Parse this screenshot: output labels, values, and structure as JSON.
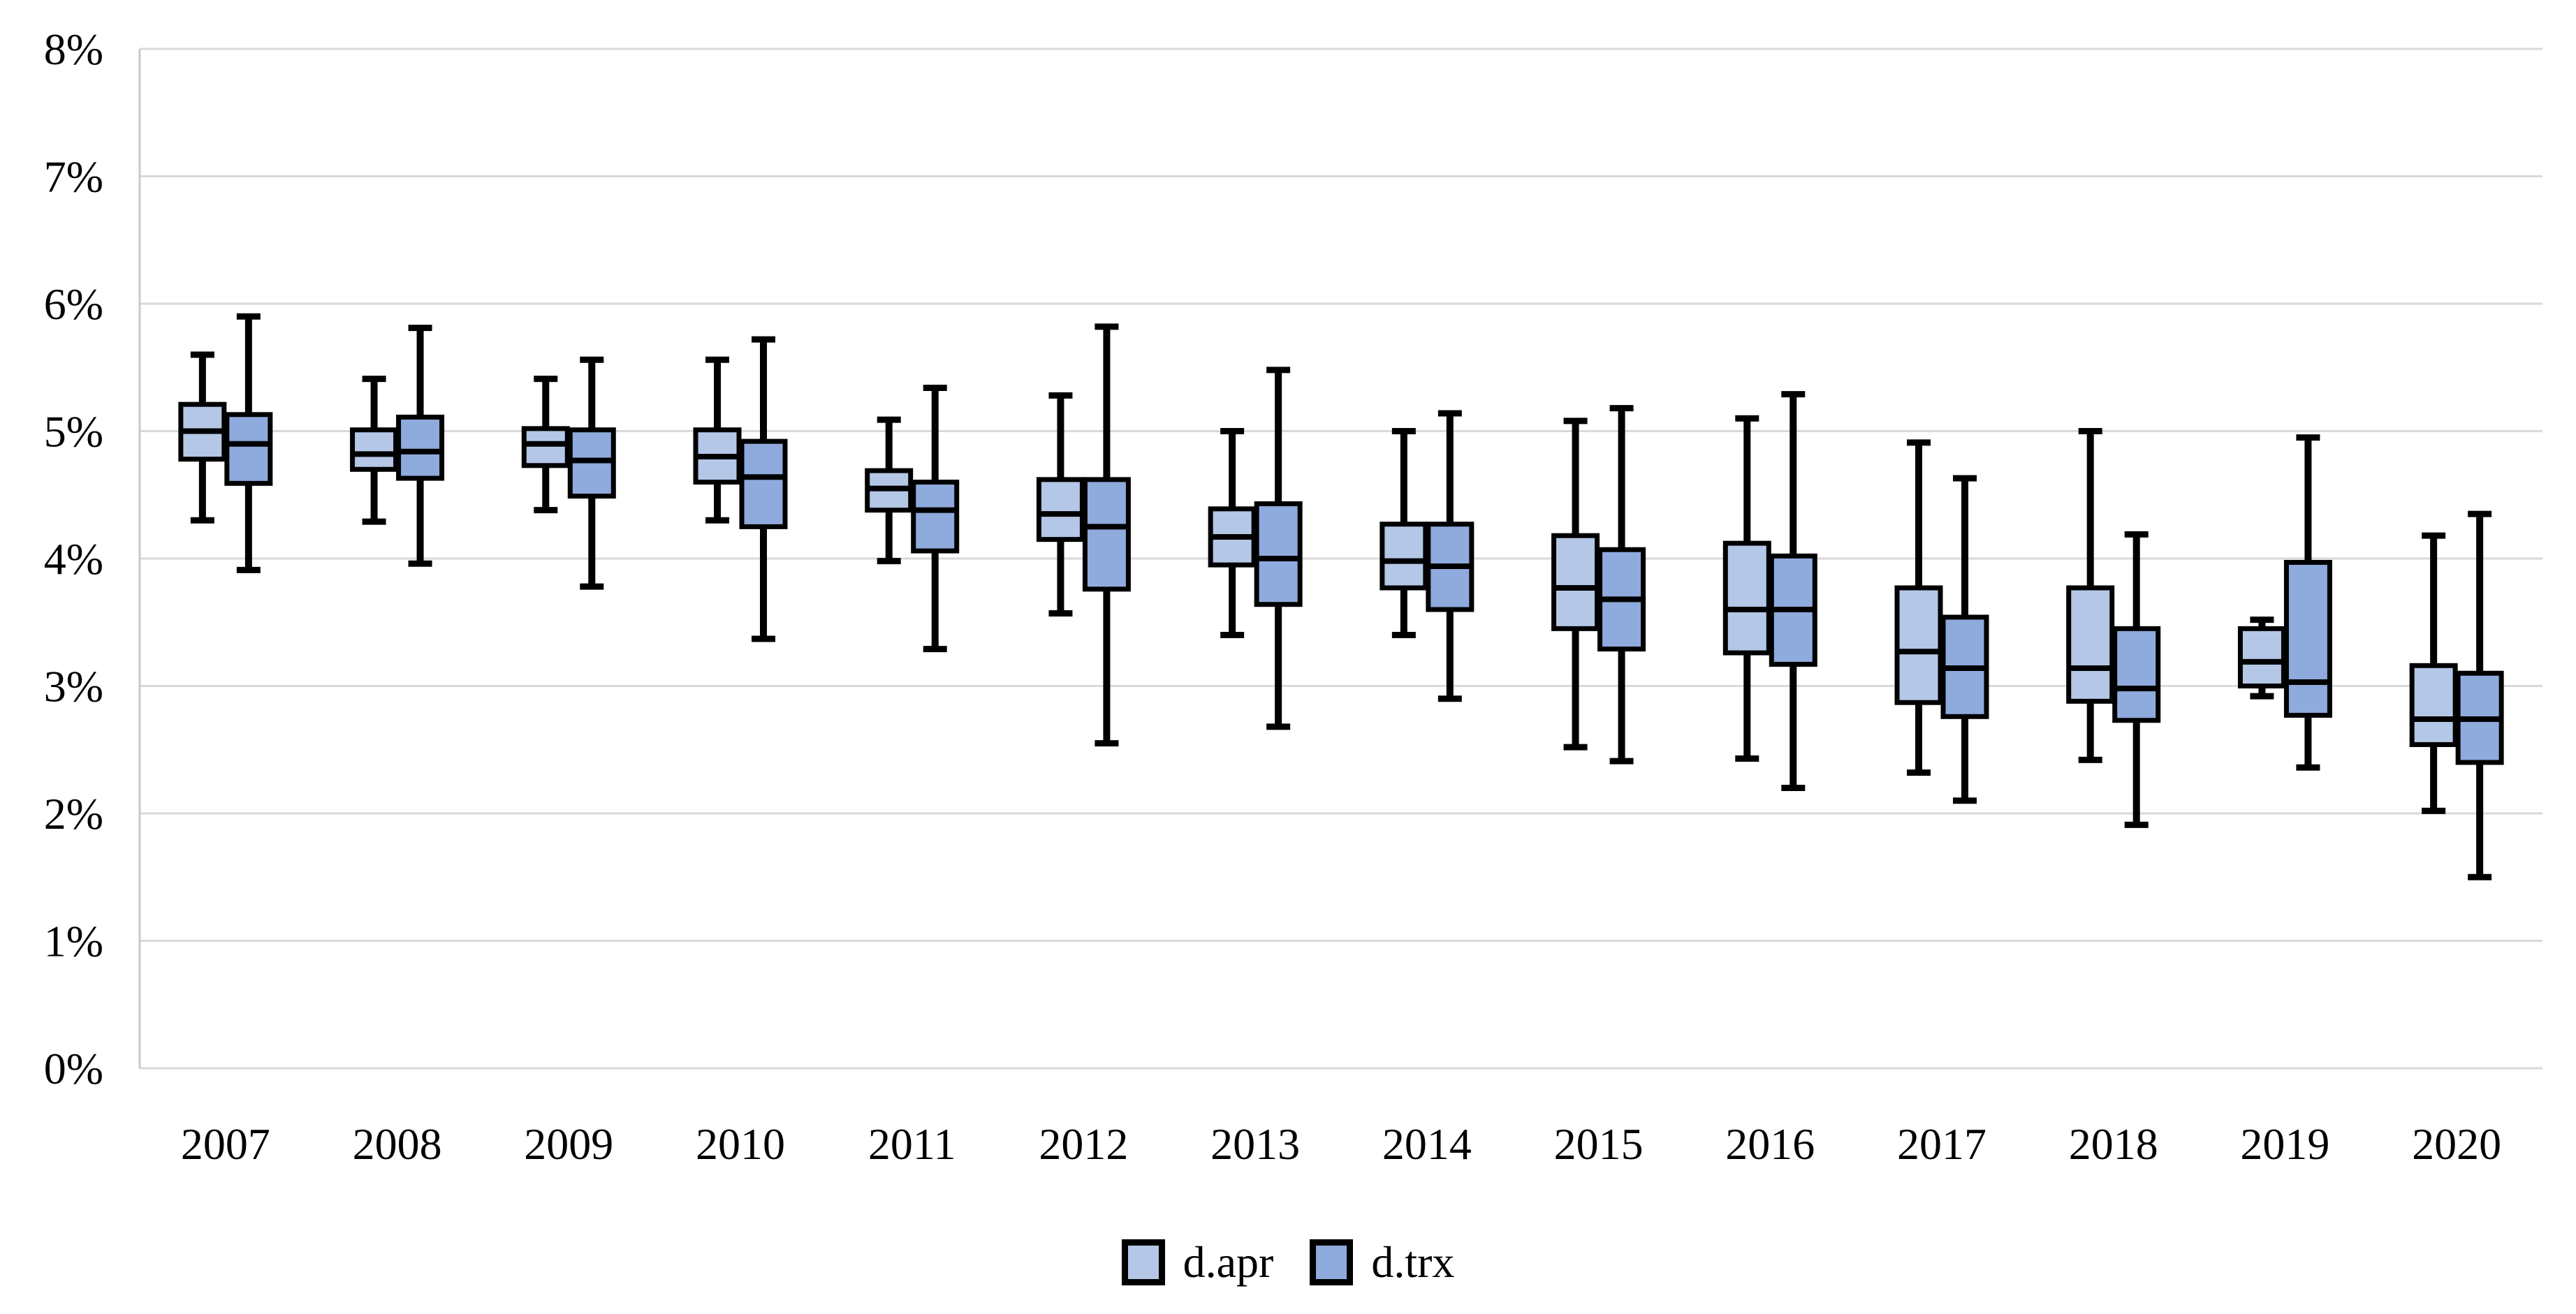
{
  "figure": {
    "background": "#FFFFFF"
  },
  "y_axis": {
    "tick_labels": [
      "8%",
      "7%",
      "6%",
      "5%",
      "4%",
      "3%",
      "2%",
      "1%",
      "0%"
    ],
    "min": 0,
    "max": 8,
    "step": 1,
    "unit": "%"
  },
  "legend": {
    "position": "bottom",
    "items": [
      {
        "label": "d.apr",
        "color": "#B4C7E7"
      },
      {
        "label": "d.trx",
        "color": "#8FAADC"
      }
    ]
  },
  "colors": {
    "box_stroke": "#000000",
    "gridline": "#D9D9D9",
    "axis_line": "#C9C9C9",
    "text": "#000000",
    "background": "#FFFFFF"
  },
  "chart_data": {
    "type": "boxplot",
    "title": "",
    "xlabel": "",
    "ylabel": "",
    "unit": "percent",
    "ylim": [
      0,
      8
    ],
    "grid": true,
    "legend_position": "bottom",
    "categories": [
      "2007",
      "2008",
      "2009",
      "2010",
      "2011",
      "2012",
      "2013",
      "2014",
      "2015",
      "2016",
      "2017",
      "2018",
      "2019",
      "2020"
    ],
    "value_order": [
      "min",
      "q1",
      "median",
      "q3",
      "max"
    ],
    "series": [
      {
        "name": "d.apr",
        "color": "#B4C7E7",
        "boxes": [
          [
            4.3,
            4.78,
            5.0,
            5.21,
            5.6
          ],
          [
            4.29,
            4.7,
            4.82,
            5.01,
            5.41
          ],
          [
            4.38,
            4.73,
            4.9,
            5.02,
            5.41
          ],
          [
            4.3,
            4.6,
            4.8,
            5.01,
            5.56
          ],
          [
            3.98,
            4.38,
            4.55,
            4.69,
            5.09
          ],
          [
            3.57,
            4.15,
            4.35,
            4.62,
            5.28
          ],
          [
            3.4,
            3.95,
            4.17,
            4.39,
            5.0
          ],
          [
            3.4,
            3.77,
            3.98,
            4.27,
            5.0
          ],
          [
            2.52,
            3.45,
            3.77,
            4.18,
            5.08
          ],
          [
            2.43,
            3.26,
            3.6,
            4.12,
            5.1
          ],
          [
            2.32,
            2.87,
            3.27,
            3.77,
            4.91
          ],
          [
            2.42,
            2.88,
            3.14,
            3.77,
            5.0
          ],
          [
            2.92,
            3.0,
            3.19,
            3.45,
            3.52
          ],
          [
            2.02,
            2.54,
            2.74,
            3.16,
            4.18
          ]
        ]
      },
      {
        "name": "d.trx",
        "color": "#8FAADC",
        "boxes": [
          [
            3.91,
            4.59,
            4.9,
            5.13,
            5.9
          ],
          [
            3.96,
            4.63,
            4.84,
            5.11,
            5.81
          ],
          [
            3.78,
            4.49,
            4.77,
            5.01,
            5.56
          ],
          [
            3.37,
            4.25,
            4.64,
            4.92,
            5.72
          ],
          [
            3.29,
            4.06,
            4.38,
            4.6,
            5.34
          ],
          [
            2.55,
            3.76,
            4.25,
            4.62,
            5.82
          ],
          [
            2.68,
            3.64,
            4.0,
            4.43,
            5.48
          ],
          [
            2.9,
            3.6,
            3.94,
            4.27,
            5.14
          ],
          [
            2.41,
            3.29,
            3.68,
            4.07,
            5.18
          ],
          [
            2.2,
            3.17,
            3.6,
            4.02,
            5.29
          ],
          [
            2.1,
            2.76,
            3.14,
            3.54,
            4.63
          ],
          [
            1.91,
            2.73,
            2.98,
            3.45,
            4.19
          ],
          [
            2.36,
            2.77,
            3.03,
            3.97,
            4.95
          ],
          [
            1.5,
            2.4,
            2.74,
            3.1,
            4.35
          ]
        ]
      }
    ]
  }
}
